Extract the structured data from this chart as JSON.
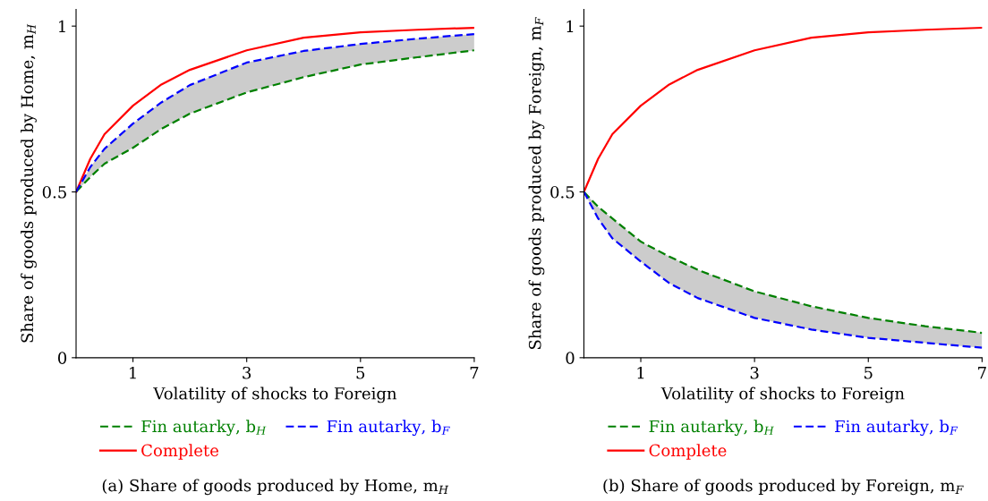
{
  "chart_data": [
    {
      "type": "line",
      "title": "(a) Share of goods produced by Home, m$_{H}$",
      "xlabel": "Volatility of shocks to Foreign",
      "ylabel": "Share of goods produced by Home, m$_{H}$",
      "x": [
        0,
        0.25,
        0.5,
        1,
        1.5,
        2,
        3,
        4,
        5,
        6,
        7
      ],
      "xlim": [
        0,
        7
      ],
      "xticks": [
        1,
        3,
        5,
        7
      ],
      "ylim": [
        0,
        1.05
      ],
      "yticks": [
        0,
        0.5,
        1
      ],
      "grid": false,
      "legend": "bottom",
      "series": [
        {
          "name": "Fin autarky, b$_{H}$",
          "color": "#008000",
          "line_style": "dashed",
          "values": [
            0.5,
            0.545,
            0.585,
            0.633,
            0.69,
            0.736,
            0.8,
            0.846,
            0.884,
            0.906,
            0.927
          ],
          "lower": [
            0.5,
            0.545,
            0.585,
            0.633,
            0.69,
            0.736,
            0.8,
            0.846,
            0.884,
            0.906,
            0.927
          ],
          "upper": [
            0.5,
            0.575,
            0.63,
            0.706,
            0.77,
            0.822,
            0.89,
            0.925,
            0.946,
            0.962,
            0.976
          ]
        },
        {
          "name": "Complete",
          "color": "#ff0000",
          "line_style": "solid",
          "values": [
            0.5,
            0.6,
            0.674,
            0.76,
            0.824,
            0.868,
            0.927,
            0.965,
            0.981,
            0.989,
            0.995
          ]
        },
        {
          "name": "Fin autarky, b$_{F}$",
          "color": "#0000ff",
          "line_style": "dashed",
          "values": [
            0.5,
            0.575,
            0.63,
            0.706,
            0.77,
            0.822,
            0.89,
            0.925,
            0.946,
            0.962,
            0.976
          ]
        }
      ]
    },
    {
      "type": "line",
      "title": "(b) Share of goods produced by Foreign, m$_{F}$",
      "xlabel": "Volatility of shocks to Foreign",
      "ylabel": "Share of goods produced by Foreign, m$_{F}$",
      "x": [
        0,
        0.25,
        0.5,
        1,
        1.5,
        2,
        3,
        4,
        5,
        6,
        7
      ],
      "xlim": [
        0,
        7
      ],
      "xticks": [
        1,
        3,
        5,
        7
      ],
      "ylim": [
        0,
        1.05
      ],
      "yticks": [
        0,
        0.5,
        1
      ],
      "grid": false,
      "legend": "bottom",
      "series": [
        {
          "name": "Fin autarky, b$_{H}$",
          "color": "#008000",
          "line_style": "dashed",
          "values": [
            0.5,
            0.455,
            0.42,
            0.35,
            0.305,
            0.265,
            0.2,
            0.155,
            0.12,
            0.095,
            0.075
          ],
          "lower": [
            0.5,
            0.42,
            0.36,
            0.29,
            0.225,
            0.18,
            0.12,
            0.085,
            0.06,
            0.045,
            0.03
          ],
          "upper": [
            0.5,
            0.455,
            0.42,
            0.35,
            0.305,
            0.265,
            0.2,
            0.155,
            0.12,
            0.095,
            0.075
          ]
        },
        {
          "name": "Complete",
          "color": "#ff0000",
          "line_style": "solid",
          "values": [
            0.5,
            0.6,
            0.674,
            0.76,
            0.824,
            0.868,
            0.927,
            0.965,
            0.981,
            0.989,
            0.995
          ]
        },
        {
          "name": "Fin autarky, b$_{F}$",
          "color": "#0000ff",
          "line_style": "dashed",
          "values": [
            0.5,
            0.42,
            0.36,
            0.29,
            0.225,
            0.18,
            0.12,
            0.085,
            0.06,
            0.045,
            0.03
          ]
        }
      ]
    }
  ]
}
